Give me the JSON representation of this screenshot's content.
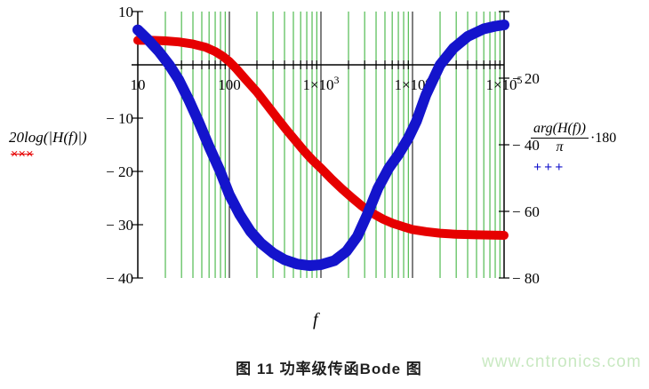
{
  "figure": {
    "caption": "图 11 功率级传函Bode 图",
    "watermark": "www.cntronics.com"
  },
  "colors": {
    "magnitude": "#e60000",
    "phase": "#1414cc",
    "minor_grid": "#2fae2f",
    "axis": "#000000",
    "watermark": "#c9e9c2"
  },
  "chart_data": {
    "type": "line",
    "title": "",
    "x_axis": {
      "label": "f",
      "scale": "log",
      "min": 10,
      "max": 100000,
      "ticks": [
        {
          "f": 10,
          "base": "10",
          "sup": ""
        },
        {
          "f": 100,
          "base": "100",
          "sup": ""
        },
        {
          "f": 1000,
          "base": "1×10",
          "sup": "3"
        },
        {
          "f": 10000,
          "base": "1×10",
          "sup": "4"
        },
        {
          "f": 100000,
          "base": "1×10",
          "sup": "5"
        }
      ]
    },
    "left_axis": {
      "label": "20log(|H(f)|)",
      "min": -40,
      "max": 10,
      "ticks": [
        {
          "v": 10,
          "label": "10"
        },
        {
          "v": -10,
          "label": "− 10"
        },
        {
          "v": -20,
          "label": "− 20"
        },
        {
          "v": -30,
          "label": "− 30"
        },
        {
          "v": -40,
          "label": "− 40"
        }
      ]
    },
    "right_axis": {
      "label_numerator": "arg(H(f))",
      "label_denominator": "π",
      "label_multiplier": "·180",
      "min": -80,
      "max": 0,
      "ticks": [
        {
          "v": -20,
          "label": "− 20"
        },
        {
          "v": -40,
          "label": "− 40"
        },
        {
          "v": -60,
          "label": "− 60"
        },
        {
          "v": -80,
          "label": "− 80"
        }
      ]
    },
    "grid": {
      "minor_on": true,
      "decade_lines_black": [
        100,
        1000,
        10000
      ]
    },
    "legend_position": "outside-left-and-right",
    "series": [
      {
        "name": "magnitude_dB",
        "axis": "left",
        "legend_marker": "×××",
        "points": [
          [
            10,
            4.6
          ],
          [
            14,
            4.6
          ],
          [
            20,
            4.5
          ],
          [
            28,
            4.3
          ],
          [
            40,
            3.9
          ],
          [
            55,
            3.3
          ],
          [
            70,
            2.5
          ],
          [
            85,
            1.6
          ],
          [
            100,
            0.6
          ],
          [
            120,
            -0.8
          ],
          [
            150,
            -2.7
          ],
          [
            200,
            -5.1
          ],
          [
            260,
            -7.6
          ],
          [
            330,
            -9.9
          ],
          [
            420,
            -12.2
          ],
          [
            520,
            -14.1
          ],
          [
            650,
            -16.1
          ],
          [
            800,
            -17.8
          ],
          [
            1000,
            -19.4
          ],
          [
            1300,
            -21.4
          ],
          [
            1700,
            -23.3
          ],
          [
            2200,
            -25.0
          ],
          [
            2800,
            -26.5
          ],
          [
            3600,
            -27.8
          ],
          [
            4700,
            -28.9
          ],
          [
            6000,
            -29.7
          ],
          [
            8000,
            -30.4
          ],
          [
            10000,
            -30.9
          ],
          [
            14000,
            -31.3
          ],
          [
            20000,
            -31.6
          ],
          [
            30000,
            -31.8
          ],
          [
            50000,
            -31.9
          ],
          [
            100000,
            -32.0
          ]
        ]
      },
      {
        "name": "phase_deg",
        "axis": "right",
        "legend_marker": "+++",
        "points": [
          [
            10,
            -5.5
          ],
          [
            13,
            -8.5
          ],
          [
            17,
            -12
          ],
          [
            22,
            -16
          ],
          [
            28,
            -20.5
          ],
          [
            36,
            -26.5
          ],
          [
            46,
            -33
          ],
          [
            60,
            -40.5
          ],
          [
            78,
            -47.5
          ],
          [
            100,
            -55
          ],
          [
            130,
            -61
          ],
          [
            170,
            -66
          ],
          [
            220,
            -69.5
          ],
          [
            300,
            -72.5
          ],
          [
            400,
            -74.5
          ],
          [
            550,
            -75.8
          ],
          [
            750,
            -76.3
          ],
          [
            1000,
            -76
          ],
          [
            1400,
            -74.8
          ],
          [
            1900,
            -72
          ],
          [
            2500,
            -67.5
          ],
          [
            3200,
            -61
          ],
          [
            4200,
            -53
          ],
          [
            5500,
            -47
          ],
          [
            7000,
            -43
          ],
          [
            9000,
            -38
          ],
          [
            11000,
            -33
          ],
          [
            14000,
            -25
          ],
          [
            20000,
            -16
          ],
          [
            28000,
            -11
          ],
          [
            40000,
            -7.5
          ],
          [
            60000,
            -5.2
          ],
          [
            80000,
            -4.4
          ],
          [
            100000,
            -4.0
          ]
        ]
      }
    ]
  }
}
